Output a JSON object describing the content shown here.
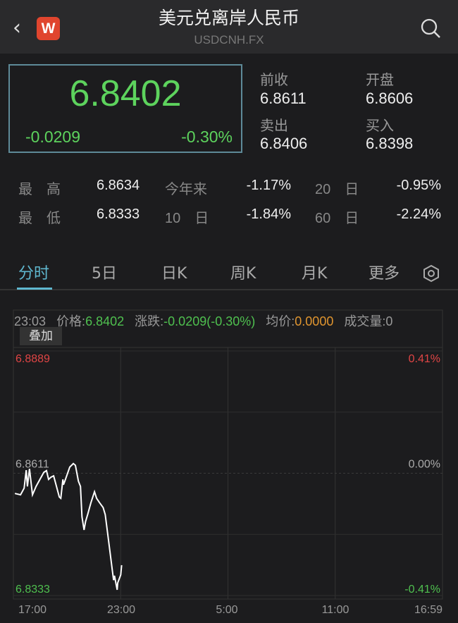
{
  "header": {
    "title": "美元兑离岸人民币",
    "symbol": "USDCNH.FX",
    "back_icon": "chevron-left-icon",
    "logo_text": "W",
    "search_icon": "search-icon"
  },
  "quote": {
    "price": "6.8402",
    "change": "-0.0209",
    "change_pct": "-0.30%",
    "fields": [
      {
        "label": "前收",
        "value": "6.8611"
      },
      {
        "label": "开盘",
        "value": "6.8606"
      },
      {
        "label": "卖出",
        "value": "6.8406"
      },
      {
        "label": "买入",
        "value": "6.8398"
      }
    ]
  },
  "stats": [
    [
      {
        "label": "最　高",
        "value": "6.8634"
      },
      {
        "label": "今年来",
        "value": "-1.17%"
      },
      {
        "label": "20　日",
        "value": "-0.95%"
      }
    ],
    [
      {
        "label": "最　低",
        "value": "6.8333"
      },
      {
        "label": "10　日",
        "value": "-1.84%"
      },
      {
        "label": "60　日",
        "value": "-2.24%"
      }
    ]
  ],
  "tabs": [
    "分时",
    "5日",
    "日K",
    "周K",
    "月K",
    "更多"
  ],
  "active_tab": "分时",
  "settings_icon": "hexagon-settings-icon",
  "info_bar": {
    "time": "23:03",
    "price_label": "价格:",
    "price": "6.8402",
    "change_label": "涨跌:",
    "change": "-0.0209(-0.30%)",
    "avg_label": "均价:",
    "avg": "0.0000",
    "volume_label": "成交量:",
    "volume": "0"
  },
  "overlay_button": "叠加",
  "colors": {
    "up": "#e04545",
    "down": "#4fc04f",
    "accent": "#5fb7cf",
    "avg": "#e0952f"
  },
  "chart_data": {
    "type": "line",
    "ylim": [
      6.8333,
      6.8889
    ],
    "y_labels_left": [
      "6.8889",
      "6.8611",
      "6.8333"
    ],
    "y_labels_right": [
      "0.41%",
      "0.00%",
      "-0.41%"
    ],
    "x_ticks": [
      "17:00",
      "23:00",
      "5:00",
      "11:00",
      "16:59"
    ],
    "prev_close": 6.8611,
    "series": [
      {
        "x": [
          "17:05",
          "17:24",
          "17:36",
          "17:43",
          "17:47",
          "17:54",
          "18:04",
          "18:11",
          "18:16",
          "18:42",
          "18:51",
          "18:58",
          "19:06",
          "19:15",
          "19:34",
          "19:39",
          "19:46",
          "19:48",
          "19:53",
          "20:09",
          "20:21",
          "20:28",
          "20:38",
          "20:45",
          "20:50",
          "20:57",
          "21:02",
          "21:09",
          "21:20",
          "21:32",
          "21:39",
          "21:49",
          "22:01",
          "22:08",
          "22:15",
          "22:24",
          "22:32",
          "22:36",
          "22:39",
          "22:48",
          "22:50",
          "23:00",
          "23:03"
        ],
        "values": [
          6.8565,
          6.8562,
          6.8577,
          6.8618,
          6.8581,
          6.8621,
          6.8562,
          6.8573,
          6.8581,
          6.8613,
          6.8617,
          6.8597,
          6.8602,
          6.8605,
          6.8557,
          6.8554,
          6.8597,
          6.8585,
          6.8594,
          6.8625,
          6.8633,
          6.8629,
          6.8593,
          6.8581,
          6.8512,
          6.8482,
          6.8501,
          6.8517,
          6.8544,
          6.8569,
          6.8554,
          6.8544,
          6.8533,
          6.8517,
          6.848,
          6.8432,
          6.8389,
          6.8368,
          6.8378,
          6.8346,
          6.8362,
          6.838,
          6.8402
        ]
      }
    ]
  }
}
